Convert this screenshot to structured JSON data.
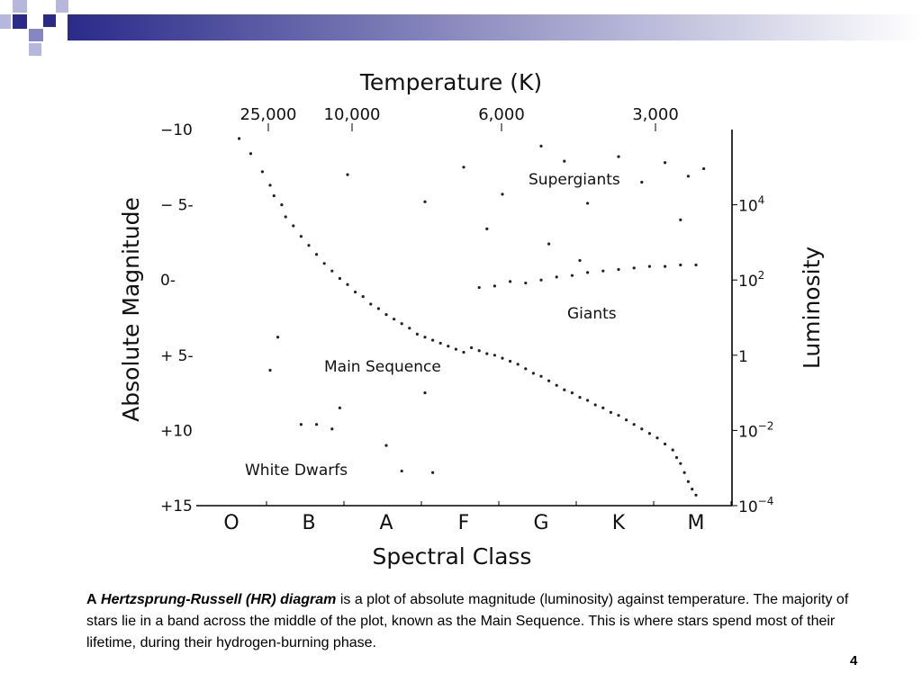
{
  "slide": {
    "caption": {
      "lead": "A",
      "term": "Hertzsprung-Russell (HR) diagram",
      "text": " is a plot of absolute magnitude (luminosity) against temperature. The majority of stars lie in a band across the middle of the plot, known as the Main Sequence. This is where stars spend most of their lifetime, during their hydrogen-burning phase."
    },
    "page_number": "4",
    "colors": {
      "header_dark": "#2a2a8a",
      "header_light": "#ffffff",
      "square_light": "#b7b7de",
      "square_mid": "#8686c2"
    }
  },
  "chart_data": {
    "type": "scatter",
    "title": "Temperature (K)",
    "xlabel": "Spectral Class",
    "ylabel": "Absolute Magnitude",
    "y2label": "Luminosity",
    "x_categories": [
      "O",
      "B",
      "A",
      "F",
      "G",
      "K",
      "M"
    ],
    "top_ticks": [
      "25,000",
      "10,000",
      "6,000",
      "3,000"
    ],
    "y_ticks": [
      {
        "value": -10,
        "label": "−10"
      },
      {
        "value": -5,
        "label": "− 5-"
      },
      {
        "value": 0,
        "label": "0-"
      },
      {
        "value": 5,
        "label": "+ 5-"
      },
      {
        "value": 10,
        "label": "+10"
      },
      {
        "value": 15,
        "label": "+15"
      }
    ],
    "ylim": [
      -10,
      15
    ],
    "y_inverted": true,
    "right_ticks": [
      {
        "value": -5,
        "base": "10",
        "exp": "4"
      },
      {
        "value": 0,
        "base": "10",
        "exp": "2"
      },
      {
        "value": 5,
        "base": "1",
        "exp": ""
      },
      {
        "value": 10,
        "base": "10",
        "exp": "−2"
      },
      {
        "value": 15,
        "base": "10",
        "exp": "−4"
      }
    ],
    "annotations": [
      "Supergiants",
      "Giants",
      "Main Sequence",
      "White Dwarfs"
    ],
    "grid": false,
    "series": [
      {
        "name": "Main Sequence",
        "points": [
          [
            0.1,
            -9.4
          ],
          [
            0.25,
            -8.4
          ],
          [
            0.4,
            -7.2
          ],
          [
            0.5,
            -6.3
          ],
          [
            0.55,
            -5.6
          ],
          [
            0.65,
            -5.0
          ],
          [
            0.7,
            -4.2
          ],
          [
            0.8,
            -3.6
          ],
          [
            0.9,
            -2.9
          ],
          [
            1.0,
            -2.3
          ],
          [
            1.1,
            -1.7
          ],
          [
            1.2,
            -1.1
          ],
          [
            1.3,
            -0.6
          ],
          [
            1.4,
            -0.1
          ],
          [
            1.5,
            0.3
          ],
          [
            1.6,
            0.8
          ],
          [
            1.7,
            1.1
          ],
          [
            1.8,
            1.6
          ],
          [
            1.9,
            1.9
          ],
          [
            2.0,
            2.3
          ],
          [
            2.1,
            2.6
          ],
          [
            2.2,
            2.9
          ],
          [
            2.3,
            3.2
          ],
          [
            2.4,
            3.6
          ],
          [
            2.5,
            3.8
          ],
          [
            2.6,
            4.0
          ],
          [
            2.7,
            4.2
          ],
          [
            2.8,
            4.4
          ],
          [
            2.9,
            4.6
          ],
          [
            3.0,
            4.8
          ],
          [
            3.1,
            4.5
          ],
          [
            3.2,
            4.7
          ],
          [
            3.3,
            4.9
          ],
          [
            3.4,
            5.0
          ],
          [
            3.5,
            5.2
          ],
          [
            3.6,
            5.4
          ],
          [
            3.7,
            5.6
          ],
          [
            3.8,
            5.9
          ],
          [
            3.9,
            6.2
          ],
          [
            4.0,
            6.4
          ],
          [
            4.1,
            6.7
          ],
          [
            4.2,
            7.0
          ],
          [
            4.3,
            7.3
          ],
          [
            4.4,
            7.5
          ],
          [
            4.5,
            7.8
          ],
          [
            4.6,
            8.0
          ],
          [
            4.7,
            8.3
          ],
          [
            4.8,
            8.5
          ],
          [
            4.9,
            8.8
          ],
          [
            5.0,
            9.0
          ],
          [
            5.1,
            9.3
          ],
          [
            5.2,
            9.6
          ],
          [
            5.3,
            9.9
          ],
          [
            5.4,
            10.2
          ],
          [
            5.5,
            10.5
          ],
          [
            5.6,
            10.9
          ],
          [
            5.7,
            11.3
          ],
          [
            5.75,
            11.8
          ],
          [
            5.8,
            12.2
          ],
          [
            5.85,
            12.8
          ],
          [
            5.9,
            13.4
          ],
          [
            5.95,
            13.9
          ],
          [
            6.0,
            14.3
          ]
        ]
      },
      {
        "name": "Giants",
        "points": [
          [
            3.2,
            0.5
          ],
          [
            3.4,
            0.4
          ],
          [
            3.6,
            0.1
          ],
          [
            3.8,
            0.2
          ],
          [
            4.0,
            0.0
          ],
          [
            4.2,
            -0.2
          ],
          [
            4.4,
            -0.3
          ],
          [
            4.6,
            -0.5
          ],
          [
            4.8,
            -0.6
          ],
          [
            5.0,
            -0.7
          ],
          [
            5.2,
            -0.8
          ],
          [
            5.4,
            -0.9
          ],
          [
            5.6,
            -0.9
          ],
          [
            5.8,
            -1.0
          ],
          [
            6.0,
            -1.0
          ]
        ]
      },
      {
        "name": "Supergiants",
        "points": [
          [
            3.0,
            -7.5
          ],
          [
            3.5,
            -5.7
          ],
          [
            4.0,
            -8.9
          ],
          [
            4.3,
            -7.9
          ],
          [
            4.6,
            -5.1
          ],
          [
            5.0,
            -8.2
          ],
          [
            5.3,
            -6.5
          ],
          [
            5.6,
            -7.8
          ],
          [
            5.9,
            -6.9
          ],
          [
            6.1,
            -7.4
          ],
          [
            1.5,
            -7.0
          ],
          [
            2.5,
            -5.2
          ],
          [
            3.3,
            -3.4
          ],
          [
            4.1,
            -2.4
          ],
          [
            4.5,
            -1.3
          ],
          [
            5.8,
            -4.0
          ]
        ]
      },
      {
        "name": "White Dwarfs",
        "points": [
          [
            0.5,
            6.0
          ],
          [
            0.6,
            3.8
          ],
          [
            1.1,
            9.6
          ],
          [
            1.3,
            9.9
          ],
          [
            2.0,
            11.0
          ],
          [
            2.2,
            12.7
          ],
          [
            2.6,
            12.8
          ],
          [
            0.9,
            9.6
          ],
          [
            1.4,
            8.5
          ],
          [
            2.5,
            7.5
          ]
        ]
      }
    ]
  }
}
